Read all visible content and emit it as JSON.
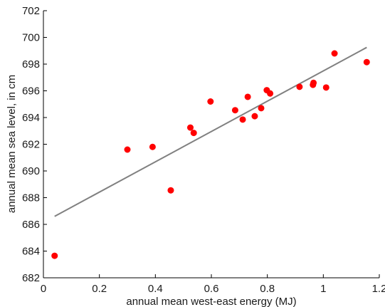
{
  "chart_data": {
    "type": "scatter",
    "xlabel": "annual mean west-east energy (MJ)",
    "ylabel": "annual mean sea level, in cm",
    "xlim": [
      0,
      1.2
    ],
    "ylim": [
      682,
      702
    ],
    "xticks": [
      0,
      0.2,
      0.4,
      0.6,
      0.8,
      1,
      1.2
    ],
    "xtick_labels": [
      "0",
      "0.2",
      "0.4",
      "0.6",
      "0.8",
      "1",
      "1.2"
    ],
    "yticks": [
      682,
      684,
      686,
      688,
      690,
      692,
      694,
      696,
      698,
      700,
      702
    ],
    "ytick_labels": [
      "682",
      "684",
      "686",
      "688",
      "690",
      "692",
      "694",
      "696",
      "698",
      "700",
      "702"
    ],
    "grid": false,
    "points": [
      {
        "x": 0.04,
        "y": 683.65
      },
      {
        "x": 0.3,
        "y": 691.6
      },
      {
        "x": 0.39,
        "y": 691.8
      },
      {
        "x": 0.455,
        "y": 688.55
      },
      {
        "x": 0.525,
        "y": 693.25
      },
      {
        "x": 0.537,
        "y": 692.85
      },
      {
        "x": 0.597,
        "y": 695.2
      },
      {
        "x": 0.685,
        "y": 694.55
      },
      {
        "x": 0.712,
        "y": 693.85
      },
      {
        "x": 0.73,
        "y": 695.55
      },
      {
        "x": 0.755,
        "y": 694.1
      },
      {
        "x": 0.778,
        "y": 694.7
      },
      {
        "x": 0.798,
        "y": 696.05
      },
      {
        "x": 0.81,
        "y": 695.8
      },
      {
        "x": 0.915,
        "y": 696.3
      },
      {
        "x": 0.963,
        "y": 696.45
      },
      {
        "x": 0.965,
        "y": 696.6
      },
      {
        "x": 1.01,
        "y": 696.25
      },
      {
        "x": 1.04,
        "y": 698.8
      },
      {
        "x": 1.155,
        "y": 698.15
      }
    ],
    "fit_line": {
      "x": [
        0.04,
        1.155
      ],
      "y": [
        686.6,
        699.25
      ]
    },
    "colors": {
      "points": "#ff0000",
      "fit_line": "#808080",
      "axes": "#000000"
    }
  }
}
